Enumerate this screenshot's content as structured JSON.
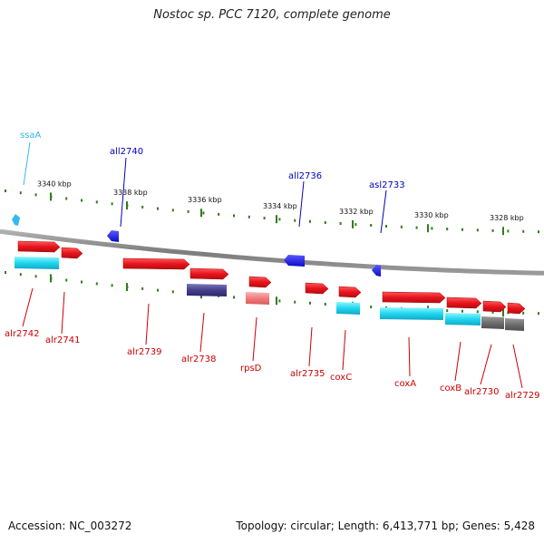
{
  "title": "Nostoc sp. PCC 7120, complete genome",
  "footer": {
    "accession": "Accession: NC_003272",
    "topology": "Topology: circular; Length: 6,413,771 bp; Genes: 5,428"
  },
  "colors": {
    "backbone": "#8a8a8a",
    "tick": "#2f7d1e",
    "forward_gene": "#e8141c",
    "reverse_gene": "#1010e0",
    "reverse_rna": "#33bbee",
    "forward_label": "#cc0000",
    "reverse_label": "#0000bb"
  },
  "ruler_labels": [
    "3340 kbp",
    "3338 kbp",
    "3336 kbp",
    "3334 kbp",
    "3332 kbp",
    "3330 kbp",
    "3328 kbp"
  ],
  "reverse_genes": [
    {
      "name": "ssaA",
      "type": "rna"
    },
    {
      "name": "all2740",
      "type": "cds"
    },
    {
      "name": "all2736",
      "type": "cds"
    },
    {
      "name": "asl2733",
      "type": "cds"
    }
  ],
  "forward_genes": [
    {
      "name": "alr2742",
      "feature": "cyan"
    },
    {
      "name": "alr2741",
      "feature": "none"
    },
    {
      "name": "alr2739",
      "feature": "none"
    },
    {
      "name": "alr2738",
      "feature": "navy"
    },
    {
      "name": "rpsD",
      "feature": "pink"
    },
    {
      "name": "alr2735",
      "feature": "none"
    },
    {
      "name": "coxC",
      "feature": "cyan"
    },
    {
      "name": "coxA",
      "feature": "cyan"
    },
    {
      "name": "coxB",
      "feature": "cyan"
    },
    {
      "name": "alr2730",
      "feature": "gray"
    },
    {
      "name": "alr2729",
      "feature": "gray"
    }
  ]
}
